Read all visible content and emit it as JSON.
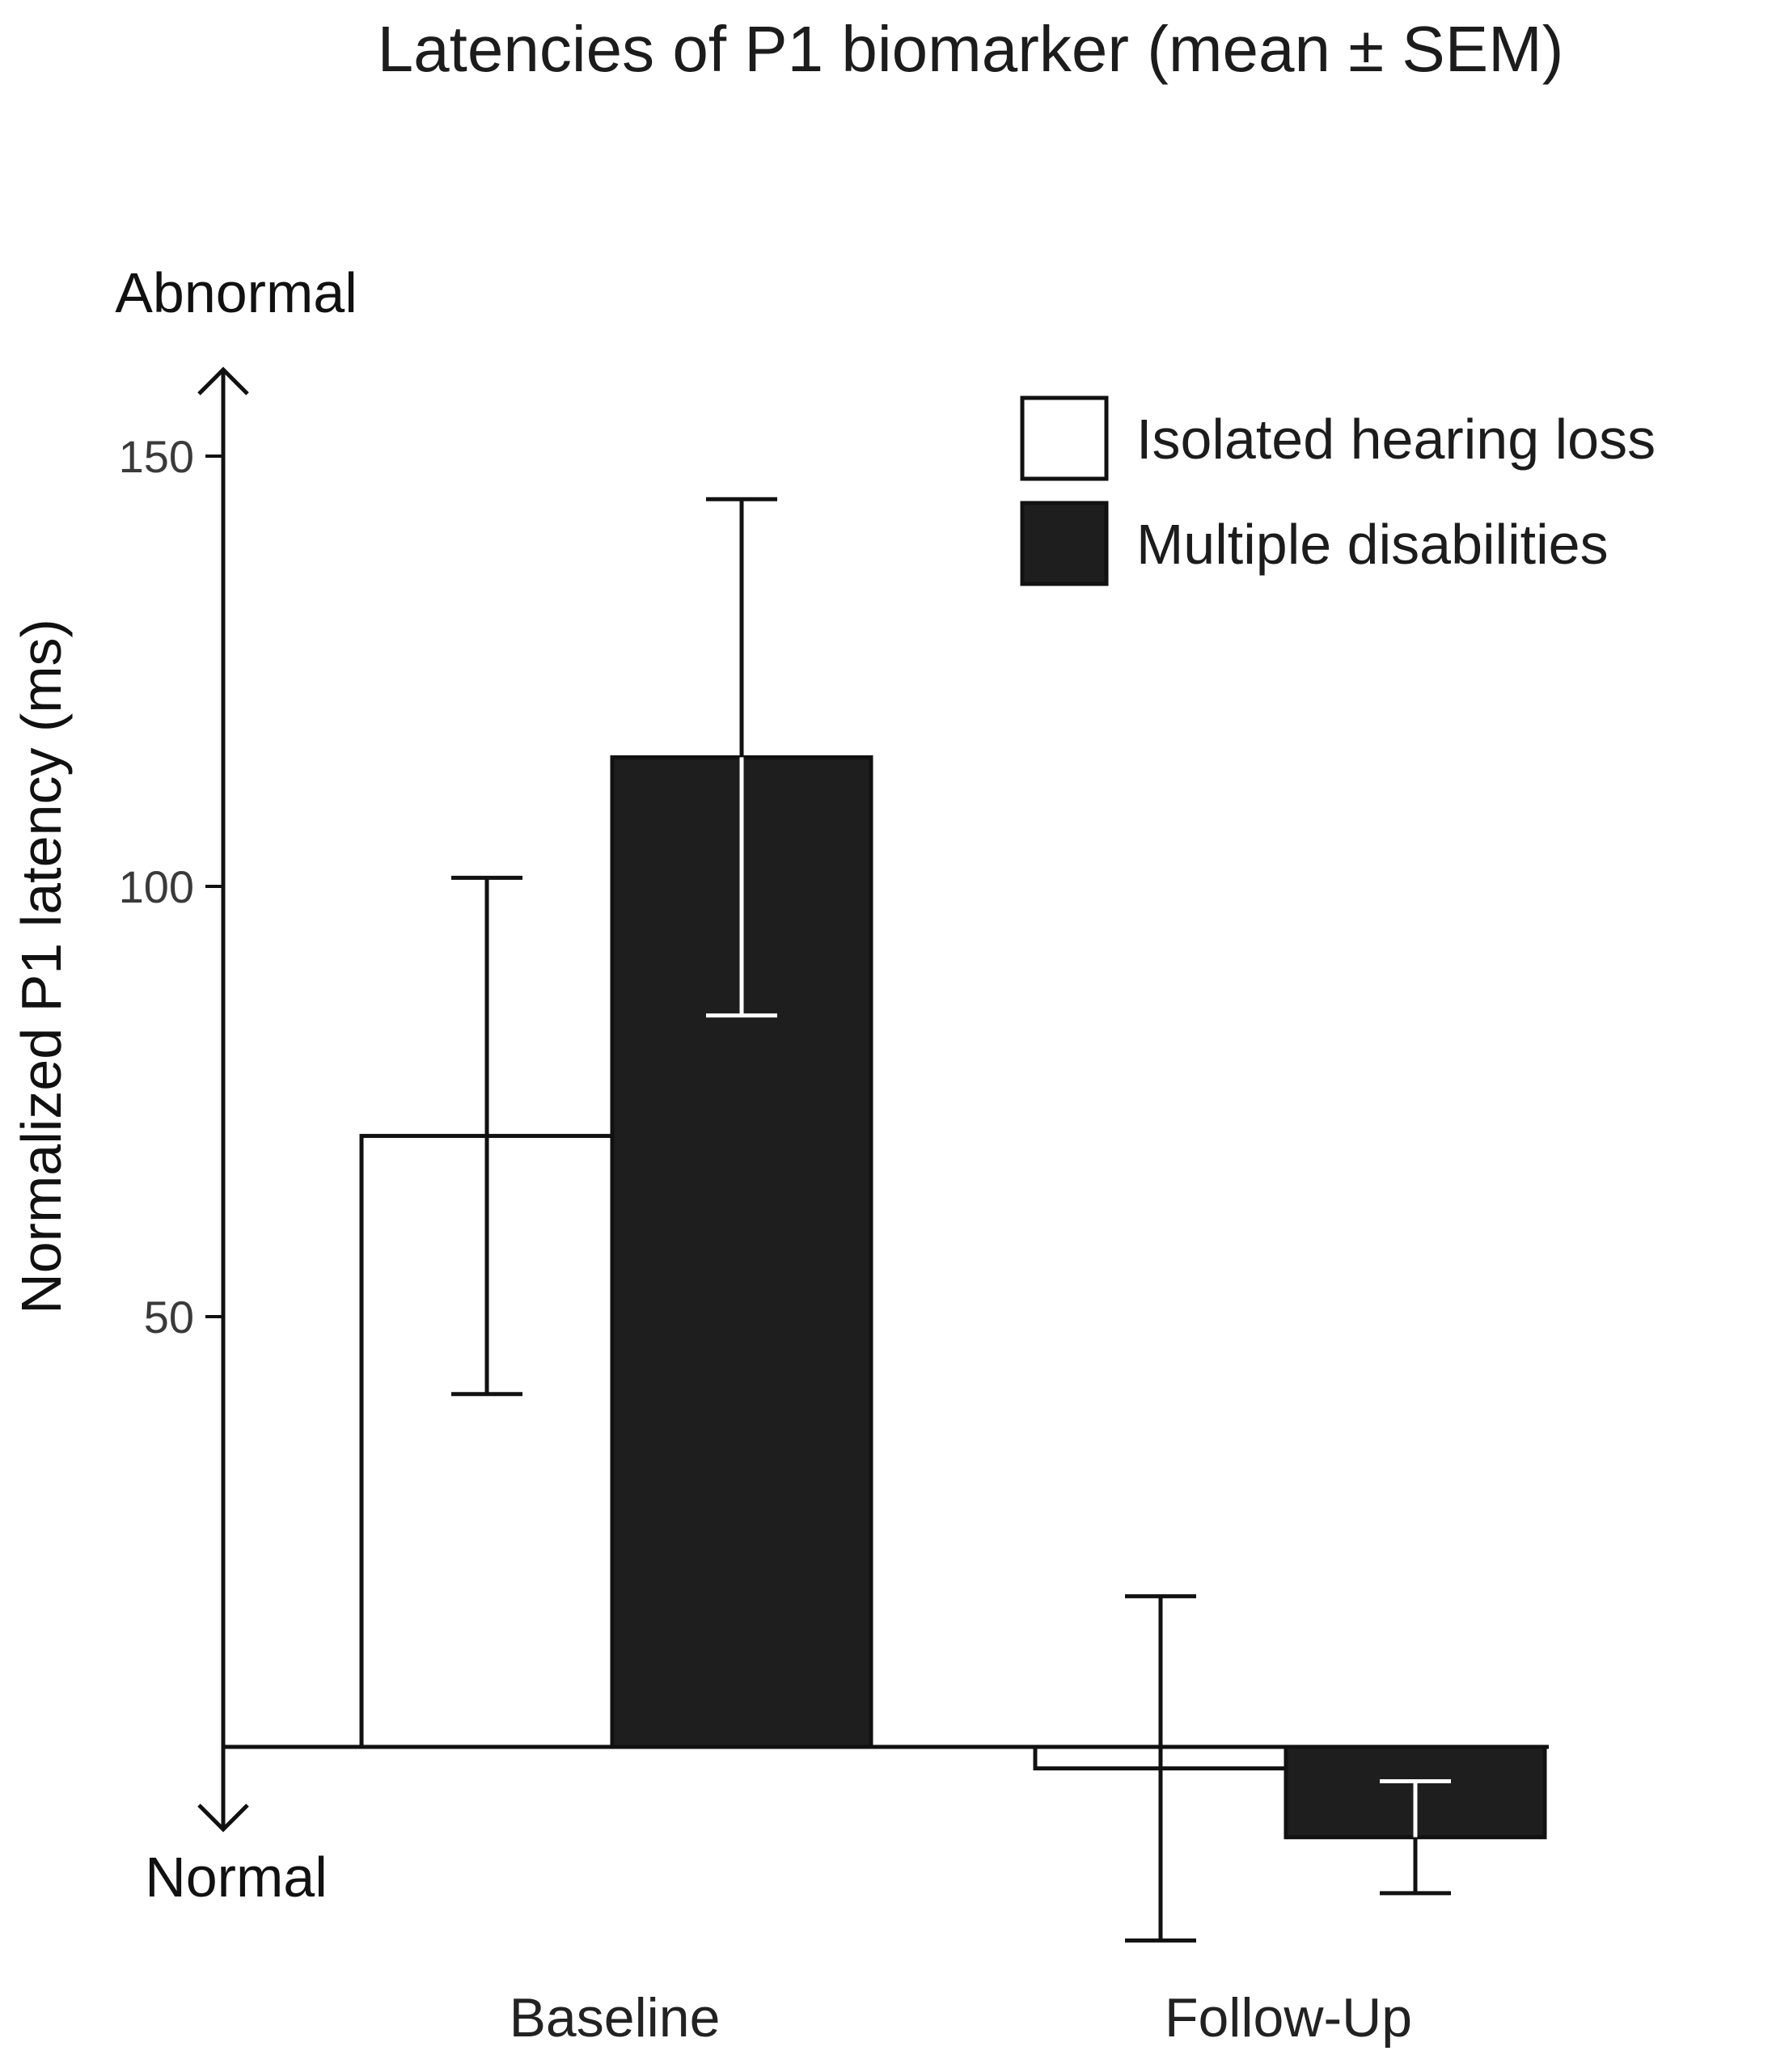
{
  "chart_data": {
    "type": "bar",
    "title": "Latencies of P1 biomarker (mean ± SEM)",
    "xlabel": "",
    "ylabel": "Normalized P1 latency (ms)",
    "y_direction_labels": {
      "top": "Abnormal",
      "bottom": "Normal"
    },
    "categories": [
      "Baseline",
      "Follow-Up"
    ],
    "yticks": [
      50,
      100,
      150
    ],
    "ylim": [
      -12,
      160
    ],
    "grid": false,
    "legend_position": "top-right",
    "series": [
      {
        "name": "Isolated hearing loss",
        "fill": "#ffffff",
        "values": [
          71,
          -2.5
        ],
        "sem": [
          30,
          20
        ]
      },
      {
        "name": "Multiple disabilities",
        "fill": "#1e1e1e",
        "values": [
          115,
          -10.5
        ],
        "sem": [
          30,
          6.5
        ]
      }
    ]
  }
}
